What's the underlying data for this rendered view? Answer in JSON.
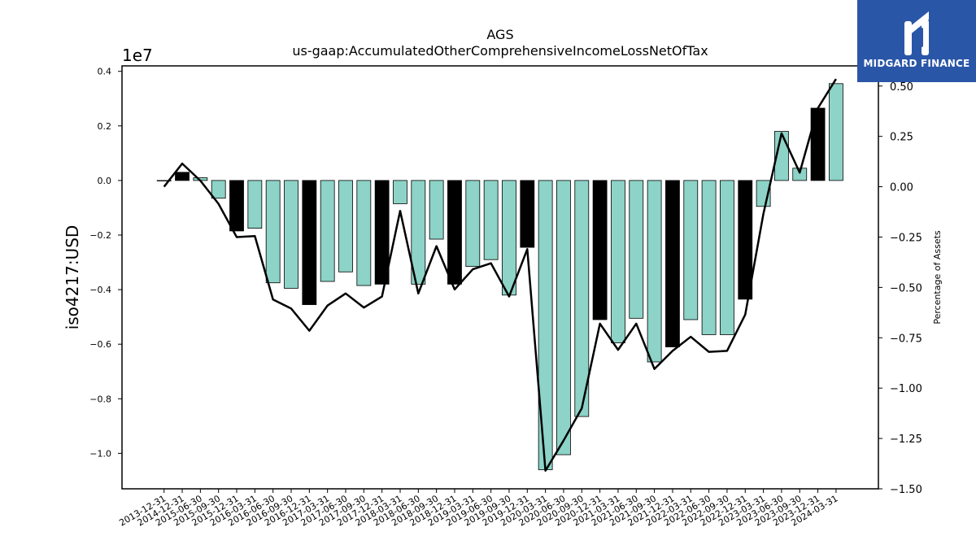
{
  "chart_data": {
    "type": "bar",
    "title": "AGS",
    "subtitle": "us-gaap:AccumulatedOtherComprehensiveIncomeLossNetOfTax",
    "ylabel": "iso4217:USD",
    "y_scale_label": "1e7",
    "y2label": "Percentage of Assets",
    "ylim": [
      -1.13,
      0.42
    ],
    "y2lim": [
      -1.5,
      0.6
    ],
    "yticks": [
      {
        "value": 0.4,
        "label": "0.4"
      },
      {
        "value": 0.2,
        "label": "0.2"
      },
      {
        "value": 0.0,
        "label": "0.0"
      },
      {
        "value": -0.2,
        "label": "−0.2"
      },
      {
        "value": -0.4,
        "label": "−0.4"
      },
      {
        "value": -0.6,
        "label": "−0.6"
      },
      {
        "value": -0.8,
        "label": "−0.8"
      },
      {
        "value": -1.0,
        "label": "−1.0"
      }
    ],
    "y2ticks": [
      {
        "value": 0.5,
        "label": "0.50"
      },
      {
        "value": 0.25,
        "label": "0.25"
      },
      {
        "value": 0.0,
        "label": "0.00"
      },
      {
        "value": -0.25,
        "label": "−0.25"
      },
      {
        "value": -0.5,
        "label": "−0.50"
      },
      {
        "value": -0.75,
        "label": "−0.75"
      },
      {
        "value": -1.0,
        "label": "−1.00"
      },
      {
        "value": -1.25,
        "label": "−1.25"
      },
      {
        "value": -1.5,
        "label": "−1.50"
      }
    ],
    "categories": [
      "2013-12-31",
      "2014-12-31",
      "2015-06-30",
      "2015-09-30",
      "2015-12-31",
      "2016-03-31",
      "2016-06-30",
      "2016-09-30",
      "2016-12-31",
      "2017-03-31",
      "2017-06-30",
      "2017-09-30",
      "2017-12-31",
      "2018-03-31",
      "2018-06-30",
      "2018-09-30",
      "2018-12-31",
      "2019-03-31",
      "2019-06-30",
      "2019-09-30",
      "2019-12-31",
      "2020-03-31",
      "2020-06-30",
      "2020-09-30",
      "2020-12-31",
      "2021-03-31",
      "2021-06-30",
      "2021-09-30",
      "2021-12-31",
      "2022-03-31",
      "2022-06-30",
      "2022-09-30",
      "2022-12-31",
      "2023-03-31",
      "2023-06-30",
      "2023-09-30",
      "2023-12-31",
      "2024-03-31"
    ],
    "series": [
      {
        "type": "bar",
        "values": [
          0.0,
          0.03,
          0.01,
          -0.065,
          -0.185,
          -0.175,
          -0.375,
          -0.395,
          -0.455,
          -0.37,
          -0.335,
          -0.385,
          -0.38,
          -0.085,
          -0.38,
          -0.215,
          -0.38,
          -0.315,
          -0.29,
          -0.42,
          -0.245,
          -1.06,
          -1.005,
          -0.865,
          -0.51,
          -0.595,
          -0.505,
          -0.665,
          -0.61,
          -0.51,
          -0.565,
          -0.565,
          -0.435,
          -0.095,
          0.18,
          0.045,
          0.265,
          0.355
        ],
        "annual_flags": [
          0,
          1,
          0,
          0,
          1,
          0,
          0,
          0,
          1,
          0,
          0,
          0,
          1,
          0,
          0,
          0,
          1,
          0,
          0,
          0,
          1,
          0,
          0,
          0,
          1,
          0,
          0,
          0,
          1,
          0,
          0,
          0,
          1,
          0,
          0,
          0,
          1,
          0
        ]
      },
      {
        "type": "line",
        "axis": "right",
        "values": [
          0.0,
          0.115,
          0.03,
          -0.085,
          -0.25,
          -0.245,
          -0.56,
          -0.605,
          -0.715,
          -0.59,
          -0.53,
          -0.6,
          -0.545,
          -0.12,
          -0.53,
          -0.295,
          -0.51,
          -0.41,
          -0.38,
          -0.545,
          -0.31,
          -1.41,
          -1.26,
          -1.1,
          -0.68,
          -0.81,
          -0.68,
          -0.905,
          -0.815,
          -0.745,
          -0.82,
          -0.815,
          -0.635,
          -0.135,
          0.265,
          0.07,
          0.39,
          0.535
        ]
      }
    ],
    "colors": {
      "bar": "#8dd3c7",
      "annual_bar": "#000000",
      "bar_edge": "#000000",
      "line": "#000000"
    },
    "grid": false
  },
  "logo": {
    "text": "MIDGARD FINANCE",
    "background": "#2a56a8"
  }
}
